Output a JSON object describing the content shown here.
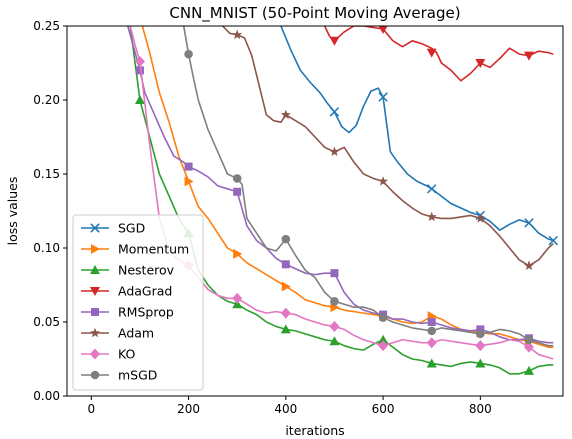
{
  "chart_data": {
    "type": "line",
    "title": "CNN_MNIST (50-Point Moving Average)",
    "xlabel": "iterations",
    "ylabel": "loss values",
    "xlim": [
      -50,
      970
    ],
    "ylim": [
      0.0,
      0.25
    ],
    "xticks": [
      0,
      200,
      400,
      600,
      800
    ],
    "yticks": [
      0.0,
      0.05,
      0.1,
      0.15,
      0.2,
      0.25
    ],
    "xtick_labels": [
      "0",
      "200",
      "400",
      "600",
      "800"
    ],
    "ytick_labels": [
      "0.00",
      "0.05",
      "0.10",
      "0.15",
      "0.20",
      "0.25"
    ],
    "legend_position": "lower-left",
    "grid": false,
    "series": [
      {
        "name": "SGD",
        "color": "#1f77b4",
        "marker": "x",
        "x": [
          390,
          410,
          430,
          450,
          470,
          485,
          500,
          515,
          530,
          545,
          560,
          575,
          590,
          600,
          615,
          630,
          650,
          670,
          690,
          700,
          720,
          740,
          760,
          780,
          800,
          820,
          840,
          860,
          880,
          900,
          920,
          940,
          950
        ],
        "y": [
          0.25,
          0.234,
          0.22,
          0.212,
          0.205,
          0.198,
          0.192,
          0.182,
          0.178,
          0.183,
          0.196,
          0.206,
          0.208,
          0.202,
          0.165,
          0.158,
          0.15,
          0.145,
          0.142,
          0.14,
          0.135,
          0.13,
          0.127,
          0.124,
          0.122,
          0.118,
          0.112,
          0.116,
          0.119,
          0.117,
          0.11,
          0.106,
          0.105
        ],
        "marker_x": [
          500,
          600,
          700,
          800,
          900,
          950
        ],
        "marker_y": [
          0.192,
          0.202,
          0.14,
          0.122,
          0.117,
          0.105
        ]
      },
      {
        "name": "Momentum",
        "color": "#ff7f0e",
        "marker": "tri-right",
        "x": [
          105,
          120,
          140,
          160,
          180,
          200,
          220,
          240,
          260,
          280,
          300,
          320,
          340,
          360,
          380,
          400,
          420,
          440,
          460,
          480,
          500,
          520,
          540,
          560,
          580,
          600,
          620,
          640,
          660,
          680,
          700,
          720,
          740,
          760,
          780,
          800,
          820,
          840,
          860,
          880,
          900,
          920,
          940,
          950
        ],
        "y": [
          0.25,
          0.232,
          0.205,
          0.185,
          0.162,
          0.145,
          0.128,
          0.12,
          0.11,
          0.1,
          0.096,
          0.09,
          0.086,
          0.082,
          0.078,
          0.074,
          0.07,
          0.065,
          0.063,
          0.061,
          0.06,
          0.058,
          0.057,
          0.056,
          0.055,
          0.054,
          0.052,
          0.05,
          0.049,
          0.05,
          0.054,
          0.052,
          0.048,
          0.045,
          0.044,
          0.043,
          0.042,
          0.042,
          0.04,
          0.038,
          0.037,
          0.035,
          0.033,
          0.033
        ],
        "marker_x": [
          200,
          300,
          400,
          500,
          600,
          700,
          800,
          900
        ],
        "marker_y": [
          0.145,
          0.096,
          0.074,
          0.06,
          0.054,
          0.054,
          0.043,
          0.037
        ]
      },
      {
        "name": "Nesterov",
        "color": "#2ca02c",
        "marker": "tri-up",
        "x": [
          80,
          100,
          120,
          140,
          160,
          180,
          200,
          220,
          240,
          260,
          280,
          300,
          320,
          340,
          360,
          380,
          400,
          420,
          440,
          460,
          480,
          500,
          520,
          540,
          560,
          580,
          600,
          620,
          640,
          660,
          680,
          700,
          720,
          740,
          760,
          780,
          800,
          820,
          840,
          860,
          880,
          900,
          920,
          940,
          950
        ],
        "y": [
          0.25,
          0.2,
          0.175,
          0.15,
          0.135,
          0.12,
          0.11,
          0.085,
          0.075,
          0.068,
          0.064,
          0.062,
          0.058,
          0.055,
          0.05,
          0.047,
          0.045,
          0.044,
          0.042,
          0.04,
          0.038,
          0.037,
          0.034,
          0.032,
          0.031,
          0.035,
          0.038,
          0.033,
          0.028,
          0.025,
          0.024,
          0.022,
          0.021,
          0.02,
          0.022,
          0.023,
          0.022,
          0.021,
          0.019,
          0.015,
          0.015,
          0.017,
          0.02,
          0.021,
          0.021
        ],
        "marker_x": [
          100,
          200,
          300,
          400,
          500,
          600,
          700,
          800,
          900
        ],
        "marker_y": [
          0.2,
          0.11,
          0.062,
          0.045,
          0.037,
          0.038,
          0.022,
          0.022,
          0.017
        ]
      },
      {
        "name": "AdaGrad",
        "color": "#d62728",
        "marker": "tri-down",
        "x": [
          480,
          490,
          500,
          520,
          540,
          560,
          580,
          600,
          620,
          640,
          660,
          680,
          700,
          710,
          720,
          740,
          760,
          780,
          800,
          820,
          840,
          860,
          880,
          900,
          920,
          940,
          950
        ],
        "y": [
          0.25,
          0.243,
          0.24,
          0.246,
          0.25,
          0.25,
          0.249,
          0.248,
          0.24,
          0.236,
          0.24,
          0.238,
          0.235,
          0.232,
          0.225,
          0.22,
          0.213,
          0.218,
          0.225,
          0.222,
          0.228,
          0.235,
          0.231,
          0.23,
          0.233,
          0.232,
          0.231
        ],
        "marker_x": [
          500,
          600,
          700,
          800,
          900
        ],
        "marker_y": [
          0.24,
          0.248,
          0.232,
          0.225,
          0.23
        ]
      },
      {
        "name": "RMSprop",
        "color": "#9467bd",
        "marker": "square",
        "x": [
          75,
          90,
          100,
          110,
          130,
          150,
          170,
          190,
          200,
          220,
          240,
          260,
          280,
          300,
          320,
          340,
          360,
          380,
          400,
          420,
          440,
          460,
          480,
          500,
          520,
          540,
          560,
          580,
          600,
          620,
          640,
          660,
          680,
          700,
          720,
          740,
          760,
          780,
          800,
          820,
          840,
          860,
          880,
          900,
          920,
          940,
          950
        ],
        "y": [
          0.25,
          0.232,
          0.22,
          0.205,
          0.19,
          0.175,
          0.162,
          0.158,
          0.155,
          0.152,
          0.148,
          0.142,
          0.14,
          0.138,
          0.115,
          0.105,
          0.1,
          0.093,
          0.089,
          0.086,
          0.083,
          0.082,
          0.083,
          0.083,
          0.07,
          0.062,
          0.058,
          0.056,
          0.055,
          0.052,
          0.052,
          0.05,
          0.049,
          0.05,
          0.048,
          0.046,
          0.045,
          0.044,
          0.045,
          0.043,
          0.04,
          0.038,
          0.038,
          0.039,
          0.037,
          0.036,
          0.036
        ],
        "marker_x": [
          100,
          200,
          300,
          400,
          500,
          600,
          700,
          800,
          900
        ],
        "marker_y": [
          0.22,
          0.155,
          0.138,
          0.089,
          0.083,
          0.055,
          0.05,
          0.045,
          0.039
        ]
      },
      {
        "name": "Adam",
        "color": "#8c564b",
        "marker": "star",
        "x": [
          270,
          285,
          300,
          315,
          330,
          345,
          360,
          375,
          390,
          400,
          420,
          440,
          460,
          480,
          500,
          520,
          540,
          560,
          580,
          600,
          620,
          640,
          660,
          680,
          700,
          720,
          740,
          760,
          780,
          800,
          820,
          840,
          860,
          880,
          900,
          920,
          940,
          950
        ],
        "y": [
          0.25,
          0.245,
          0.244,
          0.242,
          0.23,
          0.21,
          0.19,
          0.186,
          0.185,
          0.19,
          0.186,
          0.182,
          0.175,
          0.168,
          0.165,
          0.168,
          0.158,
          0.15,
          0.147,
          0.145,
          0.138,
          0.132,
          0.127,
          0.123,
          0.121,
          0.12,
          0.12,
          0.121,
          0.122,
          0.12,
          0.115,
          0.108,
          0.1,
          0.092,
          0.088,
          0.092,
          0.1,
          0.103
        ],
        "marker_x": [
          300,
          400,
          500,
          600,
          700,
          800,
          900
        ],
        "marker_y": [
          0.244,
          0.19,
          0.165,
          0.145,
          0.121,
          0.12,
          0.088
        ]
      },
      {
        "name": "KO",
        "color": "#e377c2",
        "marker": "diamond",
        "x": [
          80,
          90,
          100,
          120,
          140,
          160,
          180,
          200,
          220,
          240,
          260,
          280,
          300,
          320,
          340,
          360,
          380,
          400,
          420,
          440,
          460,
          480,
          500,
          520,
          540,
          560,
          580,
          600,
          620,
          640,
          660,
          680,
          700,
          720,
          740,
          760,
          780,
          800,
          820,
          840,
          860,
          880,
          900,
          920,
          940,
          950
        ],
        "y": [
          0.25,
          0.237,
          0.226,
          0.17,
          0.12,
          0.098,
          0.092,
          0.088,
          0.08,
          0.072,
          0.068,
          0.066,
          0.066,
          0.062,
          0.058,
          0.056,
          0.057,
          0.056,
          0.055,
          0.052,
          0.05,
          0.048,
          0.047,
          0.045,
          0.041,
          0.038,
          0.036,
          0.034,
          0.036,
          0.038,
          0.037,
          0.036,
          0.036,
          0.038,
          0.037,
          0.036,
          0.035,
          0.034,
          0.035,
          0.036,
          0.038,
          0.037,
          0.033,
          0.028,
          0.026,
          0.025
        ],
        "marker_x": [
          100,
          200,
          300,
          400,
          500,
          600,
          700,
          800,
          900
        ],
        "marker_y": [
          0.226,
          0.088,
          0.066,
          0.056,
          0.047,
          0.034,
          0.036,
          0.034,
          0.033
        ]
      },
      {
        "name": "mSGD",
        "color": "#7f7f7f",
        "marker": "circle",
        "x": [
          190,
          200,
          210,
          220,
          240,
          260,
          280,
          300,
          310,
          320,
          340,
          360,
          380,
          400,
          420,
          440,
          460,
          480,
          500,
          520,
          540,
          560,
          580,
          600,
          620,
          640,
          660,
          680,
          700,
          720,
          740,
          760,
          780,
          800,
          820,
          840,
          860,
          880,
          900,
          920,
          940,
          950
        ],
        "y": [
          0.25,
          0.231,
          0.215,
          0.2,
          0.18,
          0.165,
          0.15,
          0.147,
          0.143,
          0.12,
          0.11,
          0.1,
          0.098,
          0.106,
          0.095,
          0.085,
          0.08,
          0.07,
          0.064,
          0.062,
          0.06,
          0.06,
          0.058,
          0.053,
          0.05,
          0.048,
          0.046,
          0.045,
          0.044,
          0.046,
          0.045,
          0.044,
          0.043,
          0.042,
          0.043,
          0.045,
          0.044,
          0.042,
          0.038,
          0.036,
          0.034,
          0.034
        ],
        "marker_x": [
          200,
          300,
          400,
          500,
          600,
          700,
          800,
          900
        ],
        "marker_y": [
          0.231,
          0.147,
          0.106,
          0.064,
          0.053,
          0.044,
          0.042,
          0.038
        ]
      }
    ]
  }
}
